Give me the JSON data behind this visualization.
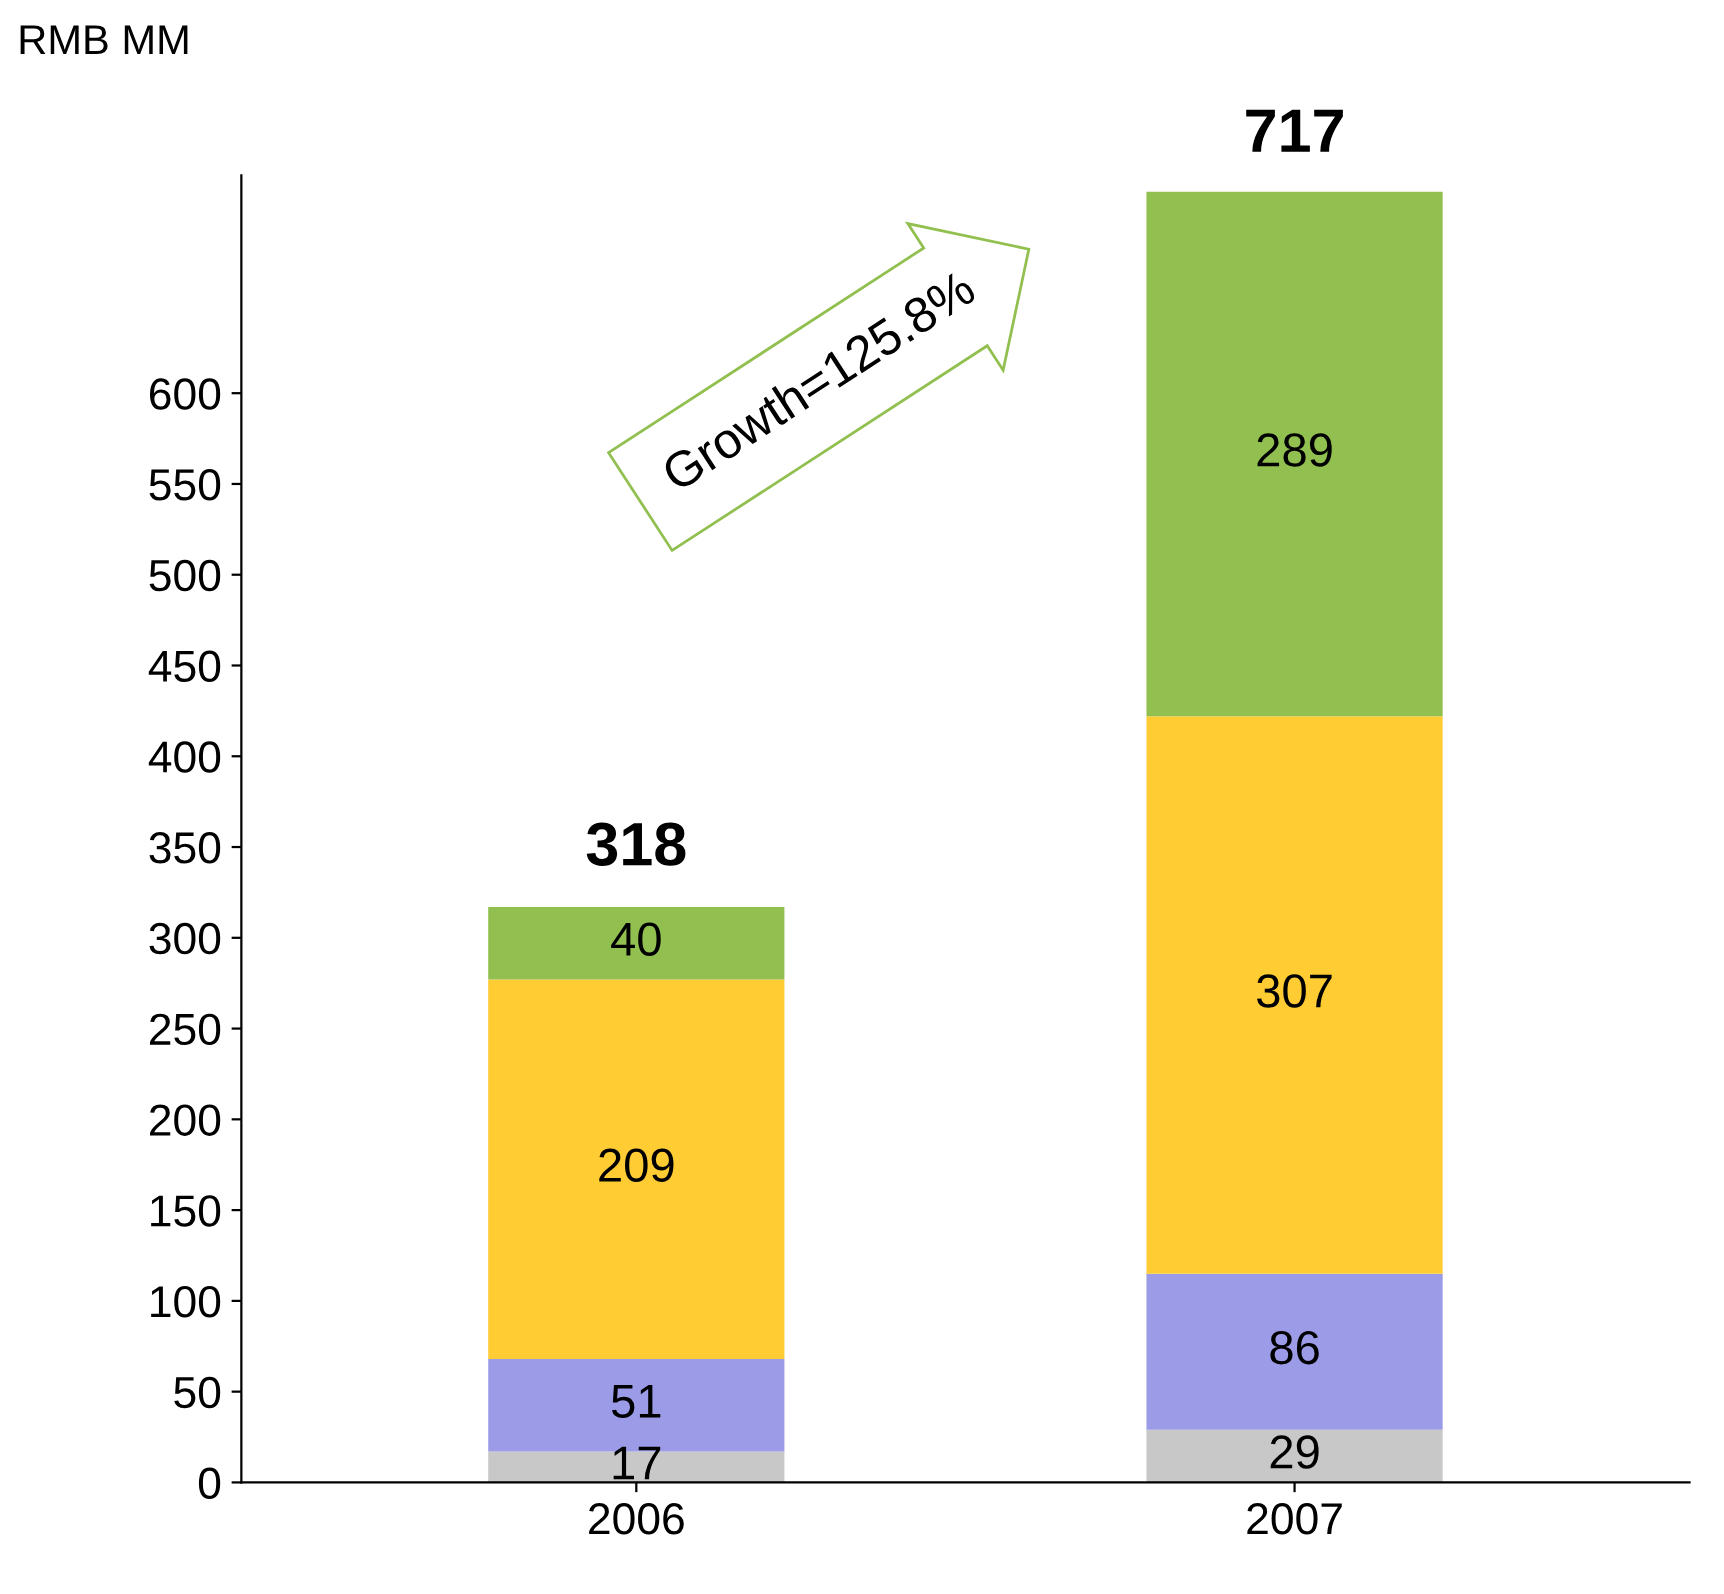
{
  "chart_data": {
    "type": "bar",
    "stacked": true,
    "ylabel": "RMB MM",
    "categories": [
      "2006",
      "2007"
    ],
    "series": [
      {
        "color": "#c8c8c8",
        "values": [
          17,
          29
        ]
      },
      {
        "color": "#9b9be8",
        "values": [
          51,
          86
        ]
      },
      {
        "color": "#ffcc33",
        "values": [
          209,
          307
        ]
      },
      {
        "color": "#92c050",
        "values": [
          40,
          289
        ]
      }
    ],
    "data_labels": true,
    "ylim": [
      0,
      720
    ],
    "yticks": [
      0,
      50,
      100,
      150,
      200,
      250,
      300,
      350,
      400,
      450,
      500,
      550,
      600
    ],
    "grid": false,
    "legend": false,
    "annotations": [
      "Growth=125.8%",
      {
        "text": "318",
        "x": "2006",
        "y": 318
      },
      {
        "text": "717",
        "x": "2007",
        "y": 711
      }
    ]
  }
}
